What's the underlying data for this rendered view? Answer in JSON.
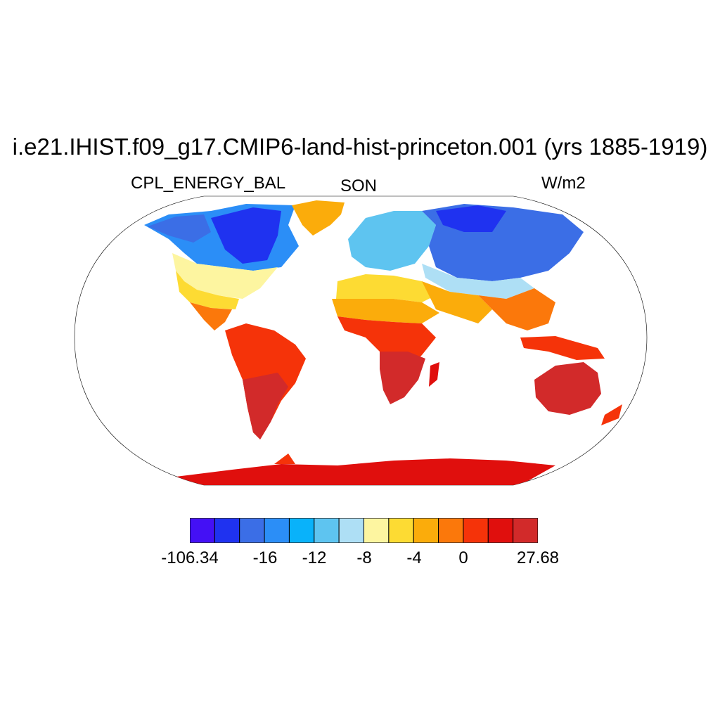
{
  "title": "i.e21.IHIST.f09_g17.CMIP6-land-hist-princeton.001 (yrs 1885-1919)",
  "left_label": "CPL_ENERGY_BAL",
  "center_label": "SON",
  "right_label": "W/m2",
  "projection": "Robinson",
  "colorbar": {
    "colors": [
      "#4410f5",
      "#1f32f0",
      "#3b6ee6",
      "#2b8ef7",
      "#09b2fa",
      "#5ec4f0",
      "#aedff5",
      "#fdf5a0",
      "#fddb33",
      "#fbac0b",
      "#fb780b",
      "#f53309",
      "#e00f0d",
      "#d22a2a"
    ],
    "labels": [
      "-106.34",
      "-16",
      "-12",
      "-8",
      "-4",
      "0",
      "27.68"
    ],
    "label_boundaries": [
      0,
      2,
      3,
      4,
      5,
      6,
      7
    ]
  },
  "regions": [
    {
      "name": "Greenland",
      "color": "#fbac0b"
    },
    {
      "name": "Canada",
      "color": "#1f32f0"
    },
    {
      "name": "USA",
      "color": "#fddb33"
    },
    {
      "name": "Central America",
      "color": "#fb780b"
    },
    {
      "name": "South America",
      "color": "#f53309"
    },
    {
      "name": "Europe",
      "color": "#5ec4f0"
    },
    {
      "name": "Siberia",
      "color": "#3b6ee6"
    },
    {
      "name": "North Africa",
      "color": "#fbac0b"
    },
    {
      "name": "Southern Africa",
      "color": "#d22a2a"
    },
    {
      "name": "Asia South",
      "color": "#fb780b"
    },
    {
      "name": "Australia",
      "color": "#d22a2a"
    },
    {
      "name": "Antarctica",
      "color": "#e00f0d"
    }
  ]
}
